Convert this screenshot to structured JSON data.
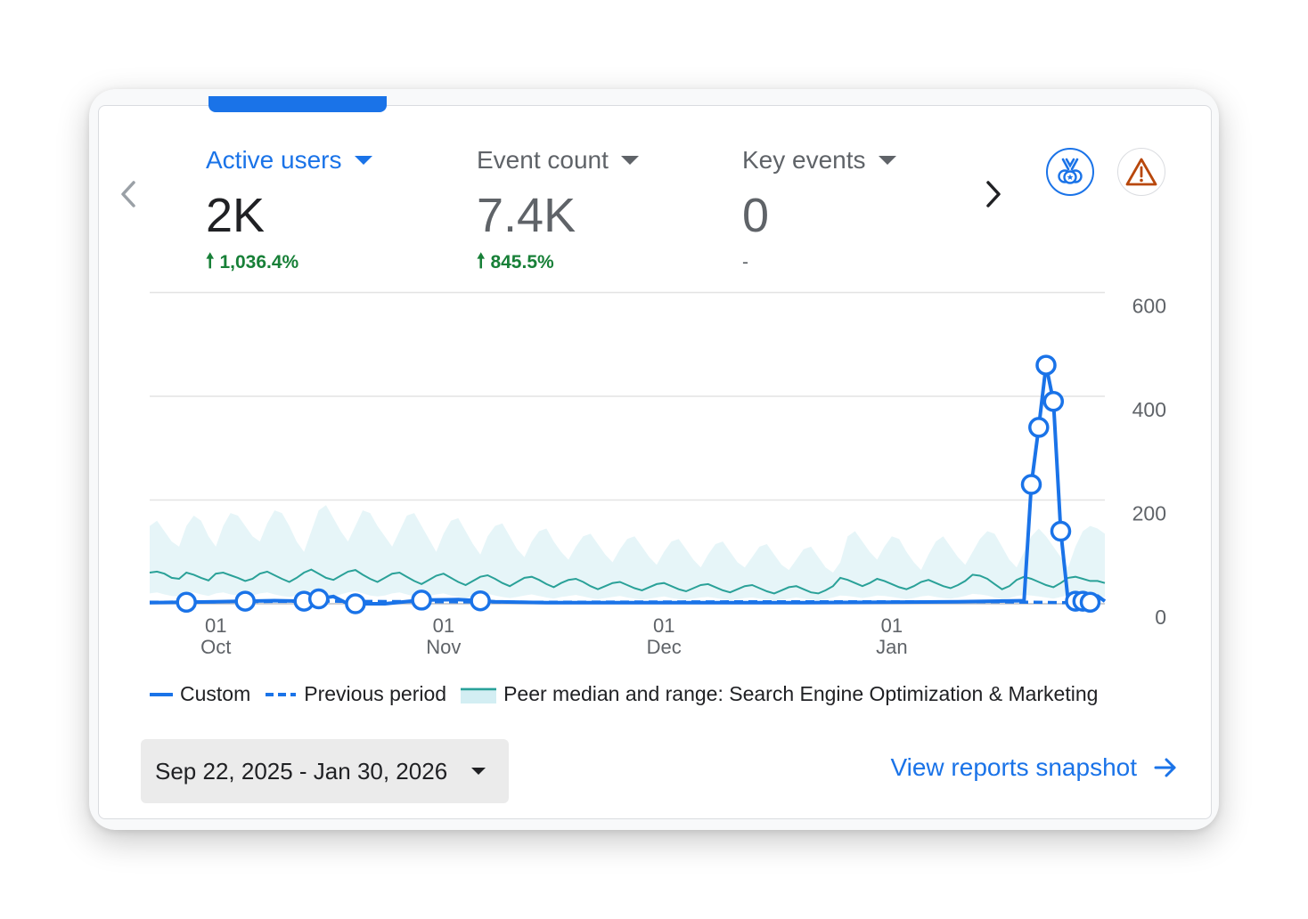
{
  "metrics": [
    {
      "label": "Active users",
      "value": "2K",
      "change": "1,036.4%",
      "direction": "up",
      "active": true
    },
    {
      "label": "Event count",
      "value": "7.4K",
      "change": "845.5%",
      "direction": "up",
      "active": false
    },
    {
      "label": "Key events",
      "value": "0",
      "change": "-",
      "direction": "none",
      "active": false
    }
  ],
  "icons": {
    "prev": "chevron-left-icon",
    "next": "chevron-right-icon",
    "medal": "medal-icon",
    "warning": "warning-icon",
    "snapshot_arrow": "arrow-right-icon"
  },
  "colors": {
    "accent": "#1a73e8",
    "positive": "#188038",
    "peer_line": "#2aa198",
    "peer_range": "#e3f4f7",
    "warning": "#b8470b"
  },
  "chart_data": {
    "type": "line",
    "x_ticks": [
      {
        "day": "01",
        "month": "Oct",
        "date": "2025-10-01"
      },
      {
        "day": "01",
        "month": "Nov",
        "date": "2025-11-01"
      },
      {
        "day": "01",
        "month": "Dec",
        "date": "2025-12-01"
      },
      {
        "day": "01",
        "month": "Jan",
        "date": "2026-01-01"
      }
    ],
    "x_range": [
      "2025-09-22",
      "2026-01-30"
    ],
    "y_ticks": [
      "600",
      "400",
      "200",
      "0"
    ],
    "ylim": [
      0,
      600
    ],
    "grid": true,
    "legend_position": "bottom",
    "series": [
      {
        "name": "Custom",
        "style": "solid",
        "markers": true,
        "points": [
          [
            "2025-09-22",
            2
          ],
          [
            "2025-09-27",
            3
          ],
          [
            "2025-10-01",
            4
          ],
          [
            "2025-10-05",
            5
          ],
          [
            "2025-10-09",
            6
          ],
          [
            "2025-10-13",
            5
          ],
          [
            "2025-10-17",
            14
          ],
          [
            "2025-10-19",
            0
          ],
          [
            "2025-10-24",
            0
          ],
          [
            "2025-10-29",
            7
          ],
          [
            "2025-11-03",
            8
          ],
          [
            "2025-11-08",
            4
          ],
          [
            "2025-11-15",
            2
          ],
          [
            "2025-12-01",
            2
          ],
          [
            "2025-12-20",
            2
          ],
          [
            "2026-01-10",
            4
          ],
          [
            "2026-01-19",
            6
          ],
          [
            "2026-01-20",
            230
          ],
          [
            "2026-01-21",
            340
          ],
          [
            "2026-01-22",
            460
          ],
          [
            "2026-01-23",
            390
          ],
          [
            "2026-01-24",
            140
          ],
          [
            "2026-01-25",
            5
          ],
          [
            "2026-01-26",
            5
          ],
          [
            "2026-01-27",
            5
          ],
          [
            "2026-01-28",
            3
          ],
          [
            "2026-01-29",
            15
          ],
          [
            "2026-01-30",
            5
          ]
        ],
        "marker_dates": [
          "2025-09-27",
          "2025-10-05",
          "2025-10-13",
          "2025-10-15",
          "2025-10-20",
          "2025-10-29",
          "2025-11-06",
          "2026-01-20",
          "2026-01-21",
          "2026-01-22",
          "2026-01-23",
          "2026-01-24",
          "2026-01-26",
          "2026-01-27",
          "2026-01-28"
        ]
      },
      {
        "name": "Previous period",
        "style": "dashed",
        "points": [
          [
            "2025-09-22",
            3
          ],
          [
            "2025-10-15",
            5
          ],
          [
            "2025-11-15",
            3
          ],
          [
            "2025-12-15",
            4
          ],
          [
            "2026-01-15",
            4
          ],
          [
            "2026-01-25",
            2
          ],
          [
            "2026-01-30",
            3
          ]
        ]
      },
      {
        "name": "Peer median and range: Search Engine Optimization & Marketing",
        "style": "line-with-band",
        "median": [
          60,
          62,
          58,
          50,
          48,
          60,
          56,
          50,
          45,
          58,
          60,
          55,
          50,
          44,
          48,
          58,
          62,
          55,
          48,
          42,
          50,
          60,
          66,
          58,
          50,
          46,
          54,
          62,
          65,
          56,
          48,
          42,
          50,
          58,
          60,
          52,
          44,
          38,
          46,
          54,
          58,
          50,
          42,
          36,
          44,
          52,
          55,
          48,
          40,
          34,
          42,
          50,
          52,
          46,
          38,
          32,
          40,
          46,
          48,
          42,
          34,
          28,
          34,
          40,
          42,
          36,
          30,
          26,
          32,
          38,
          40,
          34,
          28,
          24,
          30,
          36,
          38,
          32,
          26,
          22,
          28,
          34,
          36,
          30,
          24,
          20,
          26,
          32,
          34,
          28,
          22,
          20,
          26,
          34,
          50,
          46,
          40,
          34,
          40,
          48,
          44,
          38,
          32,
          28,
          34,
          42,
          46,
          40,
          34,
          30,
          36,
          44,
          56,
          54,
          48,
          38,
          28,
          34,
          46,
          52,
          48,
          42,
          36,
          32,
          40,
          50,
          52,
          48,
          44,
          44,
          40
        ],
        "range_high": [
          150,
          160,
          140,
          120,
          110,
          150,
          170,
          160,
          130,
          110,
          150,
          175,
          170,
          150,
          130,
          120,
          155,
          180,
          175,
          150,
          120,
          100,
          140,
          180,
          190,
          165,
          140,
          120,
          150,
          180,
          175,
          150,
          130,
          110,
          140,
          170,
          175,
          150,
          125,
          100,
          135,
          160,
          165,
          140,
          115,
          95,
          130,
          150,
          155,
          130,
          105,
          90,
          120,
          140,
          145,
          120,
          100,
          85,
          110,
          130,
          135,
          115,
          95,
          80,
          105,
          125,
          130,
          110,
          90,
          75,
          100,
          120,
          125,
          105,
          85,
          70,
          95,
          115,
          120,
          100,
          80,
          70,
          90,
          110,
          115,
          95,
          75,
          65,
          85,
          105,
          110,
          90,
          70,
          60,
          80,
          130,
          140,
          120,
          100,
          85,
          110,
          130,
          125,
          100,
          80,
          65,
          95,
          120,
          130,
          110,
          90,
          75,
          100,
          125,
          140,
          135,
          110,
          85,
          70,
          100,
          130,
          145,
          130,
          110,
          90,
          70,
          110,
          140,
          150,
          145,
          135
        ],
        "range_low": [
          20,
          22,
          18,
          15,
          14,
          20,
          22,
          18,
          15,
          20,
          22,
          18,
          16,
          14,
          16,
          20,
          22,
          18,
          15,
          13,
          16,
          20,
          24,
          20,
          16,
          14,
          18,
          22,
          24,
          20,
          16,
          14,
          16,
          20,
          22,
          18,
          14,
          12,
          15,
          18,
          20,
          16,
          13,
          11,
          14,
          17,
          19,
          16,
          13,
          11,
          13,
          16,
          18,
          15,
          12,
          10,
          13,
          15,
          17,
          14,
          11,
          9,
          11,
          13,
          15,
          12,
          10,
          8,
          10,
          12,
          14,
          11,
          9,
          8,
          10,
          12,
          13,
          11,
          9,
          7,
          9,
          11,
          12,
          10,
          8,
          7,
          8,
          10,
          12,
          10,
          8,
          7,
          9,
          12,
          16,
          15,
          13,
          11,
          13,
          16,
          15,
          13,
          11,
          9,
          11,
          14,
          16,
          13,
          11,
          10,
          12,
          15,
          19,
          18,
          16,
          12,
          9,
          11,
          15,
          17,
          16,
          14,
          12,
          10,
          13,
          17,
          18,
          16,
          14,
          14,
          13
        ]
      }
    ]
  },
  "legend": {
    "custom": "Custom",
    "previous": "Previous period",
    "peer": "Peer median and range: Search Engine Optimization & Marketing"
  },
  "date_range": {
    "label": "Sep 22, 2025 - Jan 30, 2026"
  },
  "snapshot": {
    "label": "View reports snapshot"
  }
}
